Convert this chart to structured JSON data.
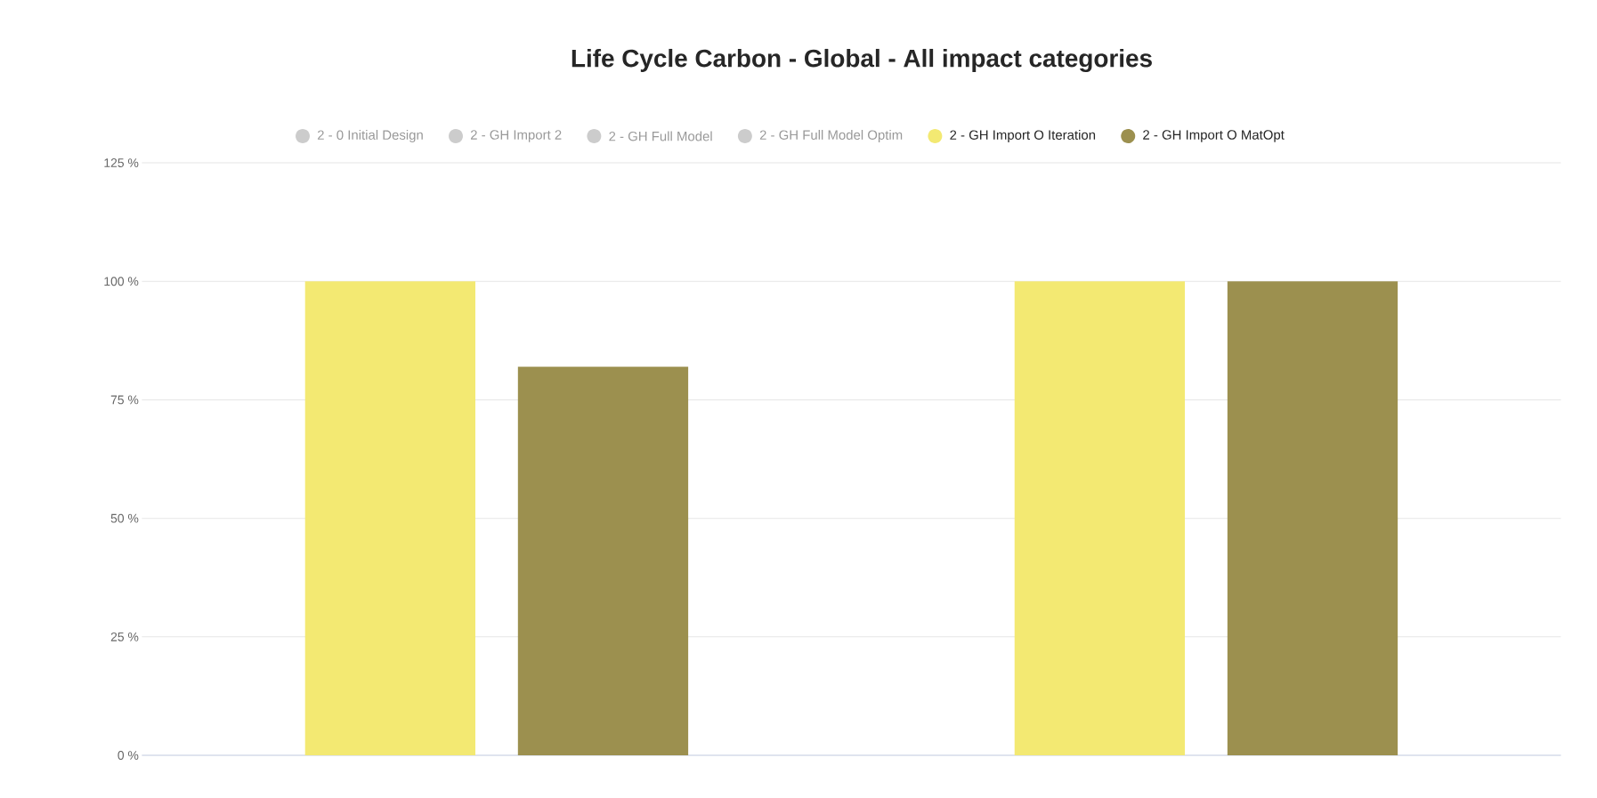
{
  "chart_data": {
    "type": "bar",
    "title": "Life Cycle Carbon - Global - All impact categories",
    "categories": [
      null,
      null
    ],
    "series": [
      {
        "name": "2 - 0 Initial Design",
        "color": "#cccccc",
        "values": [
          null,
          null
        ]
      },
      {
        "name": "2 - GH Import 2",
        "color": "#cccccc",
        "values": [
          null,
          null
        ]
      },
      {
        "name": "2 - GH Full Model",
        "color": "#cccccc",
        "values": [
          null,
          null
        ]
      },
      {
        "name": "2 - GH Full Model Optim",
        "color": "#cccccc",
        "values": [
          null,
          null
        ]
      },
      {
        "name": "2 - GH Import O Iteration",
        "color": "#f3e972",
        "values": [
          100,
          100
        ]
      },
      {
        "name": "2 - GH Import O MatOpt",
        "color": "#9c904f",
        "values": [
          82,
          100
        ]
      }
    ],
    "ylim": [
      0,
      125
    ],
    "yticks": [
      {
        "value": 0,
        "label": "0 %"
      },
      {
        "value": 25,
        "label": "25 %"
      },
      {
        "value": 50,
        "label": "50 %"
      },
      {
        "value": 75,
        "label": "75 %"
      },
      {
        "value": 100,
        "label": "100 %"
      },
      {
        "value": 125,
        "label": "125 %"
      }
    ],
    "grid": "y",
    "legend": "top"
  }
}
